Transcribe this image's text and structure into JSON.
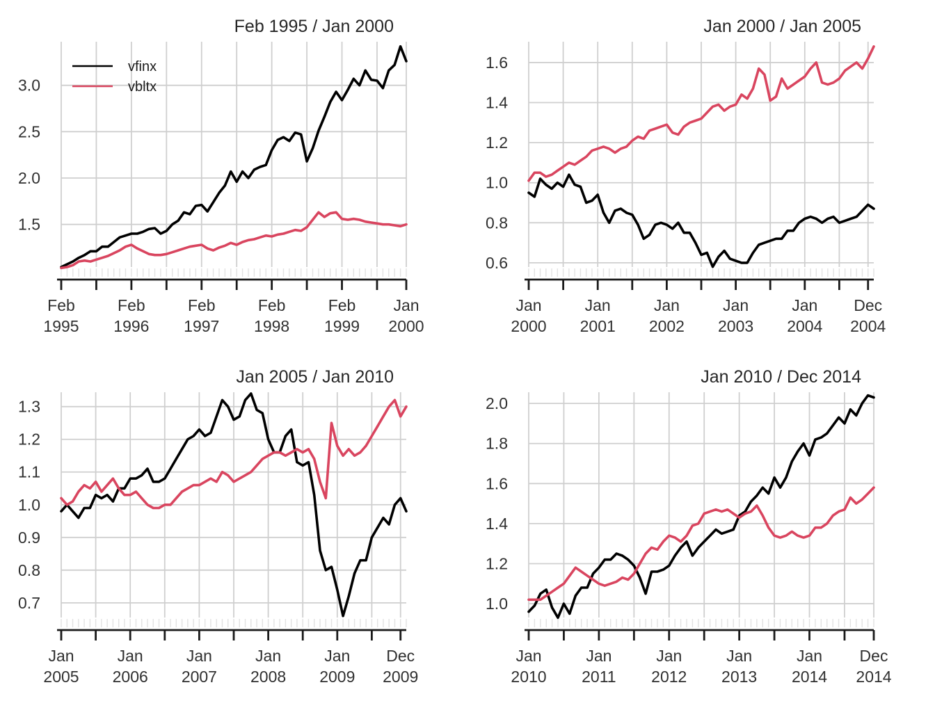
{
  "figure": {
    "background": "#ffffff",
    "grid_color": "#cfcfcf",
    "minor_tick_color": "#e2e2e2",
    "axis_color": "#1a1a1a",
    "text_color": "#303030",
    "series_colors": {
      "vfinx": "#000000",
      "vbltx": "#d9455f"
    }
  },
  "legend": {
    "items": [
      {
        "label": "vfinx",
        "color": "#000000"
      },
      {
        "label": "vbltx",
        "color": "#d9455f"
      }
    ]
  },
  "chart_data": [
    {
      "type": "line",
      "title": "Feb 1995 / Jan 2000",
      "xlabel": "",
      "ylabel": "",
      "grid": true,
      "legend_position": "top-left",
      "show_legend": true,
      "ylim": [
        0.98,
        3.47
      ],
      "y_ticks": [
        {
          "label": "1.5",
          "value": 1.5
        },
        {
          "label": "2.0",
          "value": 2.0
        },
        {
          "label": "2.5",
          "value": 2.5
        },
        {
          "label": "3.0",
          "value": 3.0
        }
      ],
      "x_major_tick_months": [
        0,
        6,
        12,
        18,
        24,
        30,
        36,
        42,
        48,
        54,
        59
      ],
      "x_labels": [
        {
          "line1": "Feb",
          "line2": "1995",
          "at": 0
        },
        {
          "line1": "Feb",
          "line2": "1996",
          "at": 12
        },
        {
          "line1": "Feb",
          "line2": "1997",
          "at": 24
        },
        {
          "line1": "Feb",
          "line2": "1998",
          "at": 36
        },
        {
          "line1": "Feb",
          "line2": "1999",
          "at": 48
        },
        {
          "line1": "Jan",
          "line2": "2000",
          "at": 59
        }
      ],
      "series": [
        {
          "name": "vfinx",
          "color": "#000000",
          "values": [
            1.04,
            1.07,
            1.1,
            1.14,
            1.17,
            1.21,
            1.21,
            1.26,
            1.26,
            1.31,
            1.36,
            1.38,
            1.4,
            1.4,
            1.42,
            1.45,
            1.46,
            1.4,
            1.43,
            1.5,
            1.54,
            1.63,
            1.61,
            1.7,
            1.71,
            1.64,
            1.74,
            1.84,
            1.92,
            2.07,
            1.96,
            2.07,
            2.0,
            2.09,
            2.12,
            2.14,
            2.3,
            2.41,
            2.44,
            2.4,
            2.49,
            2.47,
            2.18,
            2.32,
            2.51,
            2.66,
            2.82,
            2.93,
            2.84,
            2.95,
            3.07,
            3.0,
            3.16,
            3.06,
            3.05,
            2.97,
            3.16,
            3.22,
            3.42,
            3.26
          ]
        },
        {
          "name": "vbltx",
          "color": "#d9455f",
          "values": [
            1.03,
            1.04,
            1.06,
            1.1,
            1.11,
            1.1,
            1.12,
            1.14,
            1.16,
            1.19,
            1.22,
            1.26,
            1.28,
            1.24,
            1.21,
            1.18,
            1.17,
            1.17,
            1.18,
            1.2,
            1.22,
            1.24,
            1.26,
            1.27,
            1.28,
            1.24,
            1.22,
            1.25,
            1.27,
            1.3,
            1.28,
            1.31,
            1.33,
            1.34,
            1.36,
            1.38,
            1.37,
            1.39,
            1.4,
            1.42,
            1.44,
            1.43,
            1.47,
            1.55,
            1.63,
            1.58,
            1.62,
            1.63,
            1.56,
            1.55,
            1.56,
            1.55,
            1.53,
            1.52,
            1.51,
            1.5,
            1.5,
            1.49,
            1.48,
            1.5
          ]
        }
      ]
    },
    {
      "type": "line",
      "title": "Jan 2000 / Jan 2005",
      "xlabel": "",
      "ylabel": "",
      "grid": true,
      "show_legend": false,
      "ylim": [
        0.551,
        1.704
      ],
      "y_ticks": [
        {
          "label": "0.6",
          "value": 0.6
        },
        {
          "label": "0.8",
          "value": 0.8
        },
        {
          "label": "1.0",
          "value": 1.0
        },
        {
          "label": "1.2",
          "value": 1.2
        },
        {
          "label": "1.4",
          "value": 1.4
        },
        {
          "label": "1.6",
          "value": 1.6
        }
      ],
      "x_major_tick_months": [
        0,
        6,
        12,
        18,
        24,
        30,
        36,
        42,
        48,
        54,
        59
      ],
      "x_labels": [
        {
          "line1": "Jan",
          "line2": "2000",
          "at": 0
        },
        {
          "line1": "Jan",
          "line2": "2001",
          "at": 12
        },
        {
          "line1": "Jan",
          "line2": "2002",
          "at": 24
        },
        {
          "line1": "Jan",
          "line2": "2003",
          "at": 36
        },
        {
          "line1": "Jan",
          "line2": "2004",
          "at": 48
        },
        {
          "line1": "Dec",
          "line2": "2004",
          "at": 59
        }
      ],
      "series": [
        {
          "name": "vfinx",
          "color": "#000000",
          "values": [
            0.95,
            0.93,
            1.02,
            0.99,
            0.97,
            1.0,
            0.98,
            1.04,
            0.99,
            0.98,
            0.9,
            0.91,
            0.94,
            0.85,
            0.8,
            0.86,
            0.87,
            0.85,
            0.84,
            0.79,
            0.72,
            0.74,
            0.79,
            0.8,
            0.79,
            0.77,
            0.8,
            0.75,
            0.75,
            0.7,
            0.64,
            0.65,
            0.58,
            0.63,
            0.66,
            0.62,
            0.61,
            0.6,
            0.6,
            0.65,
            0.69,
            0.7,
            0.71,
            0.72,
            0.72,
            0.76,
            0.76,
            0.8,
            0.82,
            0.83,
            0.82,
            0.8,
            0.82,
            0.83,
            0.8,
            0.81,
            0.82,
            0.83,
            0.86,
            0.89,
            0.87
          ]
        },
        {
          "name": "vbltx",
          "color": "#d9455f",
          "values": [
            1.01,
            1.05,
            1.05,
            1.03,
            1.04,
            1.06,
            1.08,
            1.1,
            1.09,
            1.11,
            1.13,
            1.16,
            1.17,
            1.18,
            1.17,
            1.15,
            1.17,
            1.18,
            1.21,
            1.23,
            1.22,
            1.26,
            1.27,
            1.28,
            1.29,
            1.25,
            1.24,
            1.28,
            1.3,
            1.31,
            1.32,
            1.35,
            1.38,
            1.39,
            1.36,
            1.38,
            1.39,
            1.44,
            1.42,
            1.47,
            1.57,
            1.54,
            1.41,
            1.43,
            1.52,
            1.47,
            1.49,
            1.51,
            1.53,
            1.57,
            1.6,
            1.5,
            1.49,
            1.5,
            1.52,
            1.56,
            1.58,
            1.6,
            1.57,
            1.62,
            1.68
          ]
        }
      ]
    },
    {
      "type": "line",
      "title": "Jan 2005 / Jan 2010",
      "xlabel": "",
      "ylabel": "",
      "grid": true,
      "show_legend": false,
      "ylim": [
        0.638,
        1.344
      ],
      "y_ticks": [
        {
          "label": "0.7",
          "value": 0.7
        },
        {
          "label": "0.8",
          "value": 0.8
        },
        {
          "label": "0.9",
          "value": 0.9
        },
        {
          "label": "1.0",
          "value": 1.0
        },
        {
          "label": "1.1",
          "value": 1.1
        },
        {
          "label": "1.2",
          "value": 1.2
        },
        {
          "label": "1.3",
          "value": 1.3
        }
      ],
      "x_major_tick_months": [
        0,
        6,
        12,
        18,
        24,
        30,
        36,
        42,
        48,
        54,
        59
      ],
      "x_labels": [
        {
          "line1": "Jan",
          "line2": "2005",
          "at": 0
        },
        {
          "line1": "Jan",
          "line2": "2006",
          "at": 12
        },
        {
          "line1": "Jan",
          "line2": "2007",
          "at": 24
        },
        {
          "line1": "Jan",
          "line2": "2008",
          "at": 36
        },
        {
          "line1": "Jan",
          "line2": "2009",
          "at": 48
        },
        {
          "line1": "Dec",
          "line2": "2009",
          "at": 59
        }
      ],
      "series": [
        {
          "name": "vfinx",
          "color": "#000000",
          "values": [
            0.98,
            1.0,
            0.98,
            0.96,
            0.99,
            0.99,
            1.03,
            1.02,
            1.03,
            1.01,
            1.05,
            1.05,
            1.08,
            1.08,
            1.09,
            1.11,
            1.07,
            1.07,
            1.08,
            1.11,
            1.14,
            1.17,
            1.2,
            1.21,
            1.23,
            1.21,
            1.22,
            1.27,
            1.32,
            1.3,
            1.26,
            1.27,
            1.32,
            1.34,
            1.29,
            1.28,
            1.2,
            1.16,
            1.16,
            1.21,
            1.23,
            1.13,
            1.12,
            1.13,
            1.03,
            0.86,
            0.8,
            0.81,
            0.74,
            0.66,
            0.72,
            0.79,
            0.83,
            0.83,
            0.9,
            0.93,
            0.96,
            0.94,
            1.0,
            1.02,
            0.98
          ]
        },
        {
          "name": "vbltx",
          "color": "#d9455f",
          "values": [
            1.02,
            1.0,
            1.01,
            1.04,
            1.06,
            1.05,
            1.07,
            1.04,
            1.06,
            1.08,
            1.05,
            1.03,
            1.03,
            1.04,
            1.02,
            1.0,
            0.99,
            0.99,
            1.0,
            1.0,
            1.02,
            1.04,
            1.05,
            1.06,
            1.06,
            1.07,
            1.08,
            1.07,
            1.1,
            1.09,
            1.07,
            1.08,
            1.09,
            1.1,
            1.12,
            1.14,
            1.15,
            1.16,
            1.16,
            1.15,
            1.16,
            1.17,
            1.16,
            1.17,
            1.14,
            1.07,
            1.02,
            1.25,
            1.18,
            1.15,
            1.17,
            1.15,
            1.16,
            1.18,
            1.21,
            1.24,
            1.27,
            1.3,
            1.32,
            1.27,
            1.3
          ]
        }
      ]
    },
    {
      "type": "line",
      "title": "Jan 2010 / Dec 2014",
      "xlabel": "",
      "ylabel": "",
      "grid": true,
      "show_legend": false,
      "ylim": [
        0.903,
        2.056
      ],
      "y_ticks": [
        {
          "label": "1.0",
          "value": 1.0
        },
        {
          "label": "1.2",
          "value": 1.2
        },
        {
          "label": "1.4",
          "value": 1.4
        },
        {
          "label": "1.6",
          "value": 1.6
        },
        {
          "label": "1.8",
          "value": 1.8
        },
        {
          "label": "2.0",
          "value": 2.0
        }
      ],
      "x_major_tick_months": [
        0,
        6,
        12,
        18,
        24,
        30,
        36,
        42,
        48,
        54,
        59
      ],
      "x_labels": [
        {
          "line1": "Jan",
          "line2": "2010",
          "at": 0
        },
        {
          "line1": "Jan",
          "line2": "2011",
          "at": 12
        },
        {
          "line1": "Jan",
          "line2": "2012",
          "at": 24
        },
        {
          "line1": "Jan",
          "line2": "2013",
          "at": 36
        },
        {
          "line1": "Jan",
          "line2": "2014",
          "at": 48
        },
        {
          "line1": "Dec",
          "line2": "2014",
          "at": 59
        }
      ],
      "series": [
        {
          "name": "vfinx",
          "color": "#000000",
          "values": [
            0.96,
            0.99,
            1.05,
            1.07,
            0.98,
            0.93,
            1.0,
            0.95,
            1.04,
            1.08,
            1.08,
            1.15,
            1.18,
            1.22,
            1.22,
            1.25,
            1.24,
            1.22,
            1.19,
            1.13,
            1.05,
            1.16,
            1.16,
            1.17,
            1.19,
            1.24,
            1.28,
            1.31,
            1.24,
            1.28,
            1.31,
            1.34,
            1.37,
            1.35,
            1.36,
            1.37,
            1.44,
            1.46,
            1.51,
            1.54,
            1.58,
            1.55,
            1.63,
            1.58,
            1.63,
            1.71,
            1.76,
            1.8,
            1.74,
            1.82,
            1.83,
            1.85,
            1.89,
            1.93,
            1.9,
            1.97,
            1.94,
            2.0,
            2.04,
            2.03
          ]
        },
        {
          "name": "vbltx",
          "color": "#d9455f",
          "values": [
            1.02,
            1.02,
            1.02,
            1.04,
            1.06,
            1.08,
            1.1,
            1.14,
            1.18,
            1.16,
            1.14,
            1.12,
            1.1,
            1.09,
            1.1,
            1.11,
            1.13,
            1.12,
            1.15,
            1.2,
            1.25,
            1.28,
            1.27,
            1.31,
            1.34,
            1.33,
            1.31,
            1.34,
            1.39,
            1.4,
            1.45,
            1.46,
            1.47,
            1.46,
            1.47,
            1.45,
            1.43,
            1.45,
            1.46,
            1.49,
            1.44,
            1.38,
            1.34,
            1.33,
            1.34,
            1.36,
            1.34,
            1.33,
            1.34,
            1.38,
            1.38,
            1.4,
            1.44,
            1.46,
            1.47,
            1.53,
            1.5,
            1.52,
            1.55,
            1.58
          ]
        }
      ]
    }
  ]
}
